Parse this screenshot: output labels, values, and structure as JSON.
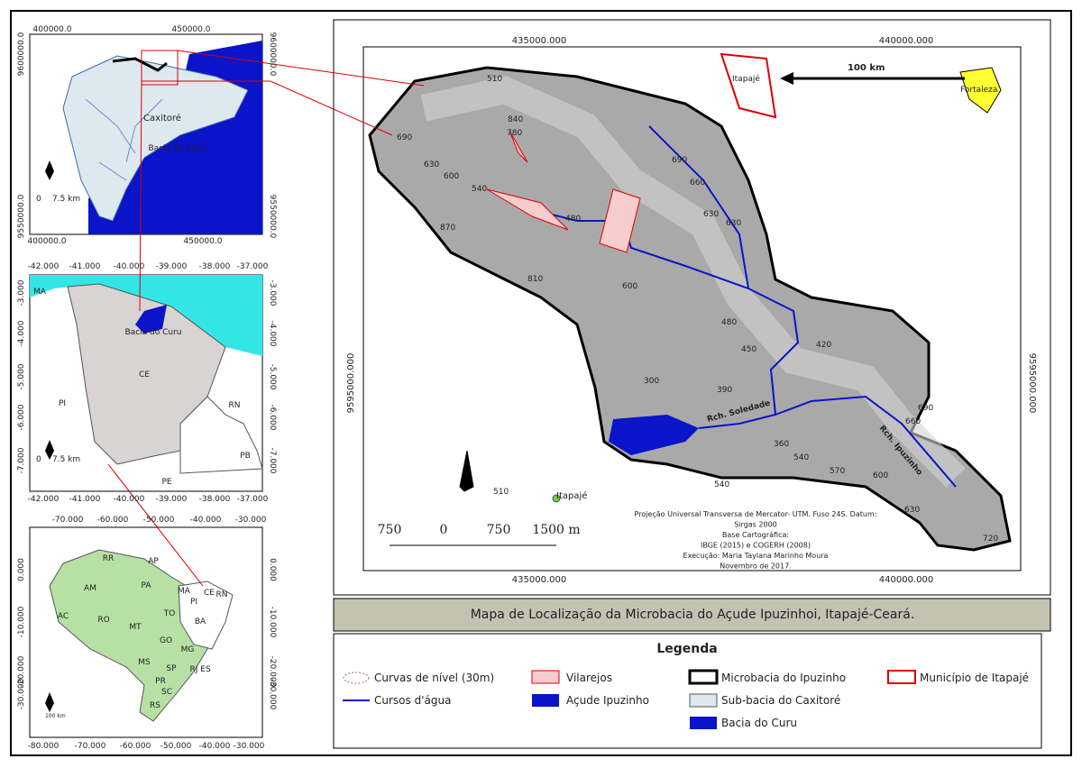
{
  "inset_basin": {
    "top_ticks": [
      "400000.0",
      "450000.0"
    ],
    "bottom_ticks": [
      "400000.0",
      "450000.0"
    ],
    "left_ticks": [
      "9600000.0",
      "9550000.0"
    ],
    "right_ticks": [
      "9600000.0",
      "9550000.0"
    ],
    "labels": [
      "Caxitoré",
      "Bacia do Curu"
    ],
    "scale": [
      "0",
      "7.5 km"
    ]
  },
  "inset_state": {
    "top_ticks": [
      "-42.000",
      "-41.000",
      "-40.000",
      "-39.000",
      "-38.000",
      "-37.000"
    ],
    "bottom_ticks": [
      "-42.000",
      "-41.000",
      "-40.000",
      "-39.000",
      "-38.000",
      "-37.000"
    ],
    "left_ticks": [
      "-3.000",
      "-4.000",
      "-5.000",
      "-6.000",
      "-7.000"
    ],
    "right_ticks": [
      "-3.000",
      "-4.000",
      "-5.000",
      "-6.000",
      "-7.000"
    ],
    "labels": [
      "MA",
      "PI",
      "CE",
      "RN",
      "PB",
      "PE",
      "Bacia do Curu"
    ],
    "scale": [
      "0",
      "7.5 km"
    ]
  },
  "inset_country": {
    "top_ticks": [
      "-70.000",
      "-60.000",
      "-50.000",
      "-40.000",
      "-30.000"
    ],
    "bottom_ticks": [
      "-80.000",
      "-70.000",
      "-60.000",
      "-50.000",
      "-40.000",
      "-30.000"
    ],
    "left_ticks": [
      "0.000",
      "-10.000",
      "-20.000",
      "-30.000"
    ],
    "right_ticks": [
      "0.000",
      "-10.000",
      "-20.000",
      "-30.000"
    ],
    "states": [
      "RR",
      "AP",
      "AM",
      "PA",
      "MA",
      "CE",
      "RN",
      "PI",
      "AC",
      "RO",
      "MT",
      "TO",
      "BA",
      "GO",
      "MG",
      "MS",
      "ES",
      "SP",
      "RJ",
      "PR",
      "SC",
      "RS"
    ],
    "scale": "100 km"
  },
  "main_map": {
    "top_ticks": [
      "435000.000",
      "440000.000"
    ],
    "bottom_ticks": [
      "435000.000",
      "440000.000"
    ],
    "left_tick": "9595000.000",
    "right_tick": "9595000.000",
    "contours": [
      "690",
      "630",
      "600",
      "540",
      "870",
      "810",
      "840",
      "780",
      "480",
      "510",
      "630",
      "660",
      "690",
      "630",
      "600",
      "480",
      "450",
      "420",
      "390",
      "360",
      "300",
      "540",
      "570",
      "600",
      "630",
      "660",
      "690",
      "720",
      "510",
      "540"
    ],
    "places": [
      "Rch. Soledade",
      "Rch. Ipuzinho",
      "Itapajé"
    ],
    "locator": {
      "distance": "100 km",
      "from": "Itapajé",
      "to": "Fortaleza"
    },
    "scale": [
      "750",
      "0",
      "750",
      "1500 m"
    ],
    "credits": [
      "Projeção Universal Transversa de Mercator- UTM. Fuso 24S. Datum:",
      "Sirgas 2000",
      "Base Cartográfica:",
      "IBGE (2015) e COGERH (2008)",
      "Execução: Maria Taylana Marinho Moura",
      "Novembro de 2017."
    ]
  },
  "title": "Mapa de Localização da Microbacia do Açude Ipuzinhoi, Itapajé-Ceará.",
  "legend": {
    "title": "Legenda",
    "items": [
      "Curvas de nível (30m)",
      "Cursos d'água",
      "Vilarejos",
      "Açude Ipuzinho",
      "Microbacia do Ipuzinho",
      "Sub-bacia do Caxitoré",
      "Bacia do Curu",
      "Município de Itapajé"
    ]
  }
}
